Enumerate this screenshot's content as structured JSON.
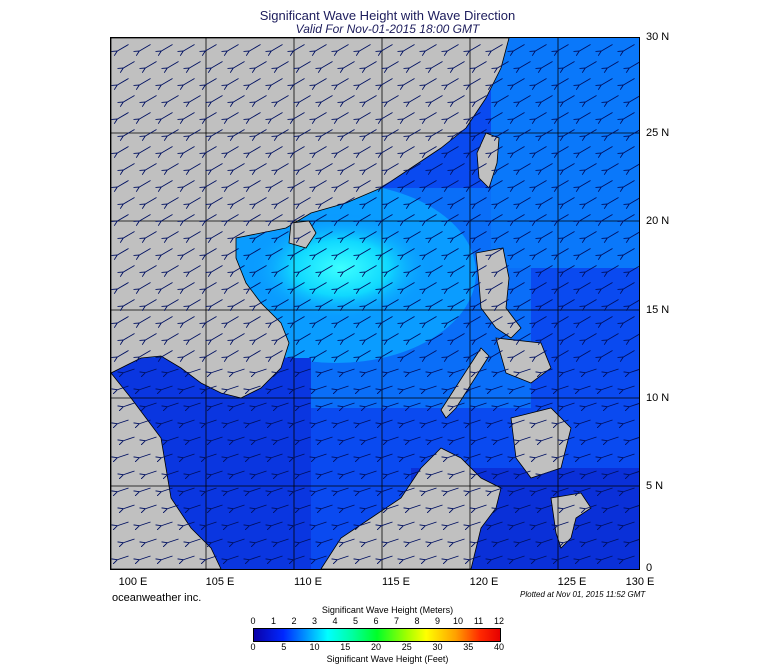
{
  "title": "Significant Wave Height with Wave Direction",
  "subtitle": "Valid For Nov-01-2015 18:00 GMT",
  "credit": "oceanweather inc.",
  "plotted": "Plotted at Nov 01, 2015 11:52 GMT",
  "lat_labels": [
    "30 N",
    "25 N",
    "20 N",
    "15 N",
    "10 N",
    "5 N",
    "0"
  ],
  "lon_labels": [
    "100 E",
    "105 E",
    "110 E",
    "115 E",
    "120 E",
    "125 E",
    "130 E"
  ],
  "colorbar": {
    "title_top": "Significant Wave Height (Meters)",
    "title_bottom": "Significant Wave Height (Feet)",
    "meters": [
      "0",
      "1",
      "2",
      "3",
      "4",
      "5",
      "6",
      "7",
      "8",
      "9",
      "10",
      "11",
      "12"
    ],
    "feet": [
      "0",
      "5",
      "10",
      "15",
      "20",
      "25",
      "30",
      "35",
      "40"
    ]
  },
  "colors": {
    "land": "#c0c0c0",
    "sea_low": "#0a28e6",
    "sea_mid": "#0a8cff",
    "sea_high": "#10f0ff"
  },
  "icons": {
    "arrows": "wave-direction-arrow"
  }
}
